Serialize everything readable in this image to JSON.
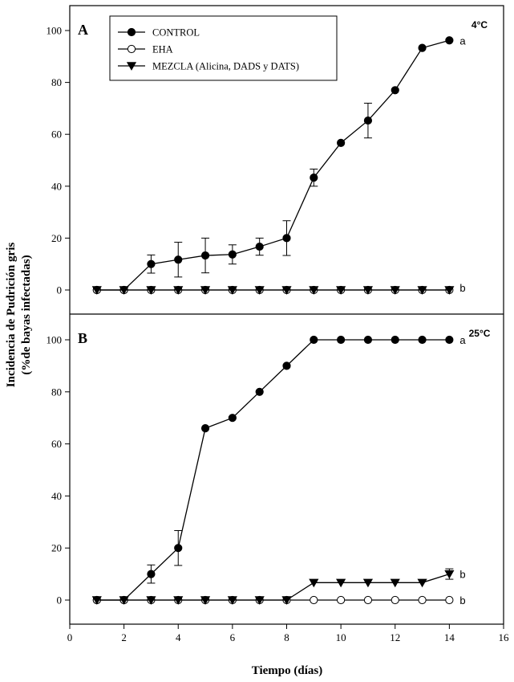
{
  "chart_data": {
    "type": "line",
    "x_axis": {
      "label": "Tiempo (días)",
      "range": [
        0,
        16
      ],
      "ticks": [
        0,
        2,
        4,
        6,
        8,
        10,
        12,
        14,
        16
      ],
      "tick_labels": [
        "0",
        "2",
        "4",
        "6",
        "8",
        "10",
        "12",
        "14",
        "16"
      ]
    },
    "y_axis": {
      "label_line1": "Incidencia de Pudrición gris",
      "label_line2": "(%de bayas infectadas)"
    },
    "legend": {
      "position": "top-left",
      "entries": [
        {
          "name": "CONTROL",
          "marker": "filled-circle"
        },
        {
          "name": "EHA",
          "marker": "open-circle"
        },
        {
          "name": "MEZCLA (Alicina, DADS y DATS)",
          "marker": "filled-triangle-down"
        }
      ]
    },
    "panels": [
      {
        "letter": "A",
        "temperature": "4°C",
        "y_range": [
          -10,
          110
        ],
        "y_ticks": [
          0,
          20,
          40,
          60,
          80,
          100
        ],
        "y_tick_labels": [
          "0",
          "20",
          "40",
          "60",
          "80",
          "100"
        ],
        "series": [
          {
            "name": "CONTROL",
            "marker": "filled-circle",
            "x": [
              1,
              2,
              3,
              4,
              5,
              6,
              7,
              8,
              9,
              10,
              11,
              12,
              13,
              14
            ],
            "y": [
              0,
              0,
              10,
              11.7,
              13.3,
              13.7,
              16.7,
              20,
              43.3,
              56.7,
              65.3,
              77,
              93.3,
              96.2
            ],
            "err": [
              0,
              0,
              3.5,
              6.7,
              6.7,
              3.7,
              3.3,
              6.7,
              3.3,
              0,
              6.7,
              0,
              0,
              0
            ]
          },
          {
            "name": "EHA",
            "marker": "open-circle",
            "x": [
              1,
              2,
              3,
              4,
              5,
              6,
              7,
              8,
              9,
              10,
              11,
              12,
              13,
              14
            ],
            "y": [
              0,
              0,
              0,
              0,
              0,
              0,
              0,
              0,
              0,
              0,
              0,
              0,
              0,
              0
            ],
            "err": [
              0,
              0,
              0,
              0,
              0,
              0,
              0,
              0,
              0,
              0,
              0,
              0,
              0,
              0
            ]
          },
          {
            "name": "MEZCLA (Alicina, DADS y DATS)",
            "marker": "filled-triangle-down",
            "x": [
              1,
              2,
              3,
              4,
              5,
              6,
              7,
              8,
              9,
              10,
              11,
              12,
              13,
              14
            ],
            "y": [
              0,
              0,
              0,
              0,
              0,
              0,
              0,
              0,
              0,
              0,
              0,
              0,
              0,
              0
            ],
            "err": [
              0,
              0,
              0,
              0,
              0,
              0,
              0,
              0,
              0,
              0,
              0,
              0,
              0,
              0
            ]
          }
        ],
        "annotations": [
          {
            "text": "a",
            "x": 14,
            "y": 96.2,
            "series": "CONTROL"
          },
          {
            "text": "b",
            "x": 14,
            "y": 1,
            "series": "EHA / MEZCLA"
          }
        ]
      },
      {
        "letter": "B",
        "temperature": "25°C",
        "y_range": [
          -10,
          110
        ],
        "y_ticks": [
          0,
          20,
          40,
          60,
          80,
          100
        ],
        "y_tick_labels": [
          "0",
          "20",
          "40",
          "60",
          "80",
          "100"
        ],
        "series": [
          {
            "name": "CONTROL",
            "marker": "filled-circle",
            "x": [
              1,
              2,
              3,
              4,
              5,
              6,
              7,
              8,
              9,
              10,
              11,
              12,
              13,
              14
            ],
            "y": [
              0,
              0,
              10,
              20,
              66,
              70,
              80,
              90,
              100,
              100,
              100,
              100,
              100,
              100
            ],
            "err": [
              0,
              0,
              3.5,
              6.7,
              0,
              0,
              0,
              0,
              0,
              0,
              0,
              0,
              0,
              0
            ]
          },
          {
            "name": "EHA",
            "marker": "open-circle",
            "x": [
              1,
              2,
              3,
              4,
              5,
              6,
              7,
              8,
              9,
              10,
              11,
              12,
              13,
              14
            ],
            "y": [
              0,
              0,
              0,
              0,
              0,
              0,
              0,
              0,
              0,
              0,
              0,
              0,
              0,
              0
            ],
            "err": [
              0,
              0,
              0,
              0,
              0,
              0,
              0,
              0,
              0,
              0,
              0,
              0,
              0,
              0
            ]
          },
          {
            "name": "MEZCLA (Alicina, DADS y DATS)",
            "marker": "filled-triangle-down",
            "x": [
              1,
              2,
              3,
              4,
              5,
              6,
              7,
              8,
              9,
              10,
              11,
              12,
              13,
              14
            ],
            "y": [
              0,
              0,
              0,
              0,
              0,
              0,
              0,
              0,
              6.7,
              6.7,
              6.7,
              6.7,
              6.7,
              10
            ],
            "err": [
              0,
              0,
              0,
              0,
              0,
              0,
              0,
              0,
              0,
              0,
              0,
              0,
              0,
              2
            ]
          }
        ],
        "annotations": [
          {
            "text": "a",
            "x": 14,
            "y": 100,
            "series": "CONTROL"
          },
          {
            "text": "b",
            "x": 14,
            "y": 10,
            "series": "MEZCLA (Alicina, DADS y DATS)"
          },
          {
            "text": "b",
            "x": 14,
            "y": 0,
            "series": "EHA"
          }
        ]
      }
    ]
  }
}
